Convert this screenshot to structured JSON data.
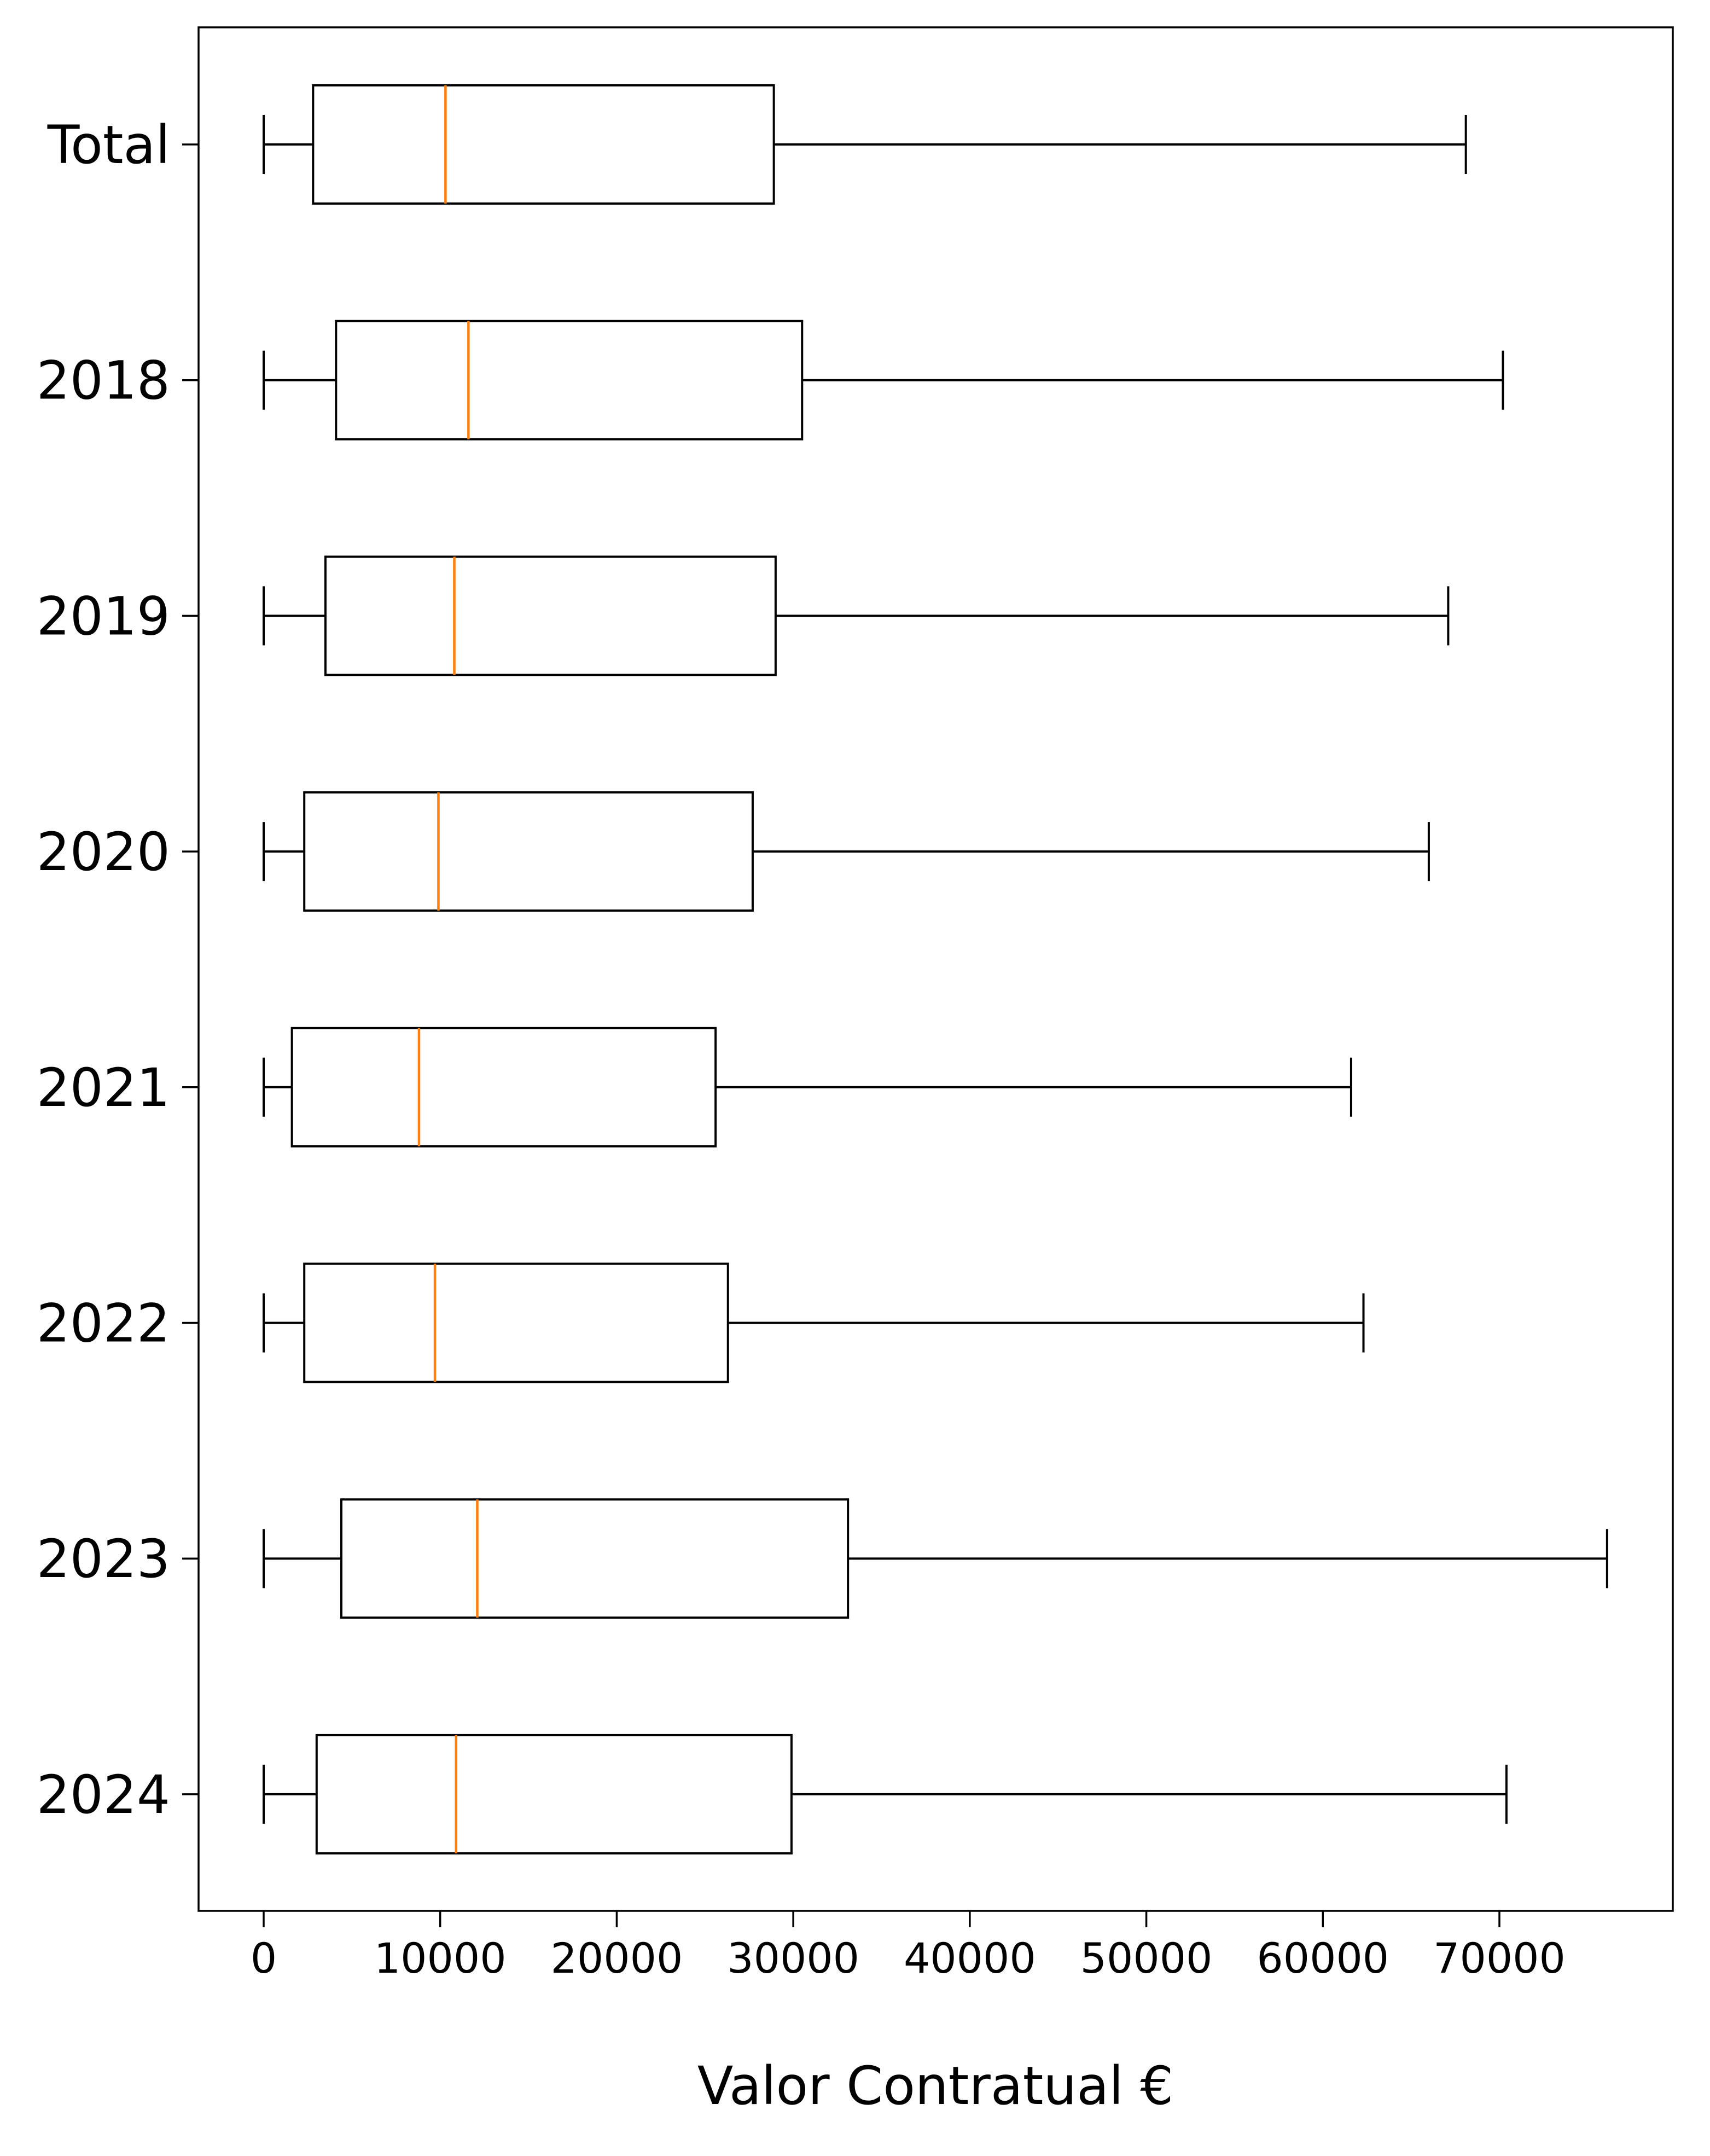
{
  "chart_data": {
    "type": "boxplot",
    "orientation": "horizontal",
    "xlabel": "Valor Contratual €",
    "ylabel": "",
    "xlim": [
      -3700,
      80000
    ],
    "xticks": [
      0,
      10000,
      20000,
      30000,
      40000,
      50000,
      60000,
      70000
    ],
    "xtick_labels": [
      "0",
      "10000",
      "20000",
      "30000",
      "40000",
      "50000",
      "60000",
      "70000"
    ],
    "grid": false,
    "colors": {
      "box": "#000000",
      "median": "#ff7f0e",
      "background": "#ffffff"
    },
    "categories": [
      "Total",
      "2018",
      "2019",
      "2020",
      "2021",
      "2022",
      "2023",
      "2024"
    ],
    "boxes": [
      {
        "label": "Total",
        "whisker_low": 0,
        "q1": 2800,
        "median": 10300,
        "q3": 28900,
        "whisker_high": 68100
      },
      {
        "label": "2018",
        "whisker_low": 0,
        "q1": 4100,
        "median": 11600,
        "q3": 30500,
        "whisker_high": 70200
      },
      {
        "label": "2019",
        "whisker_low": 0,
        "q1": 3500,
        "median": 10800,
        "q3": 29000,
        "whisker_high": 67100
      },
      {
        "label": "2020",
        "whisker_low": 0,
        "q1": 2300,
        "median": 9900,
        "q3": 27700,
        "whisker_high": 66000
      },
      {
        "label": "2021",
        "whisker_low": 0,
        "q1": 1600,
        "median": 8800,
        "q3": 25600,
        "whisker_high": 61600
      },
      {
        "label": "2022",
        "whisker_low": 0,
        "q1": 2300,
        "median": 9700,
        "q3": 26300,
        "whisker_high": 62300
      },
      {
        "label": "2023",
        "whisker_low": 0,
        "q1": 4400,
        "median": 12100,
        "q3": 33100,
        "whisker_high": 76100
      },
      {
        "label": "2024",
        "whisker_low": 0,
        "q1": 3000,
        "median": 10900,
        "q3": 29900,
        "whisker_high": 70400
      }
    ]
  }
}
